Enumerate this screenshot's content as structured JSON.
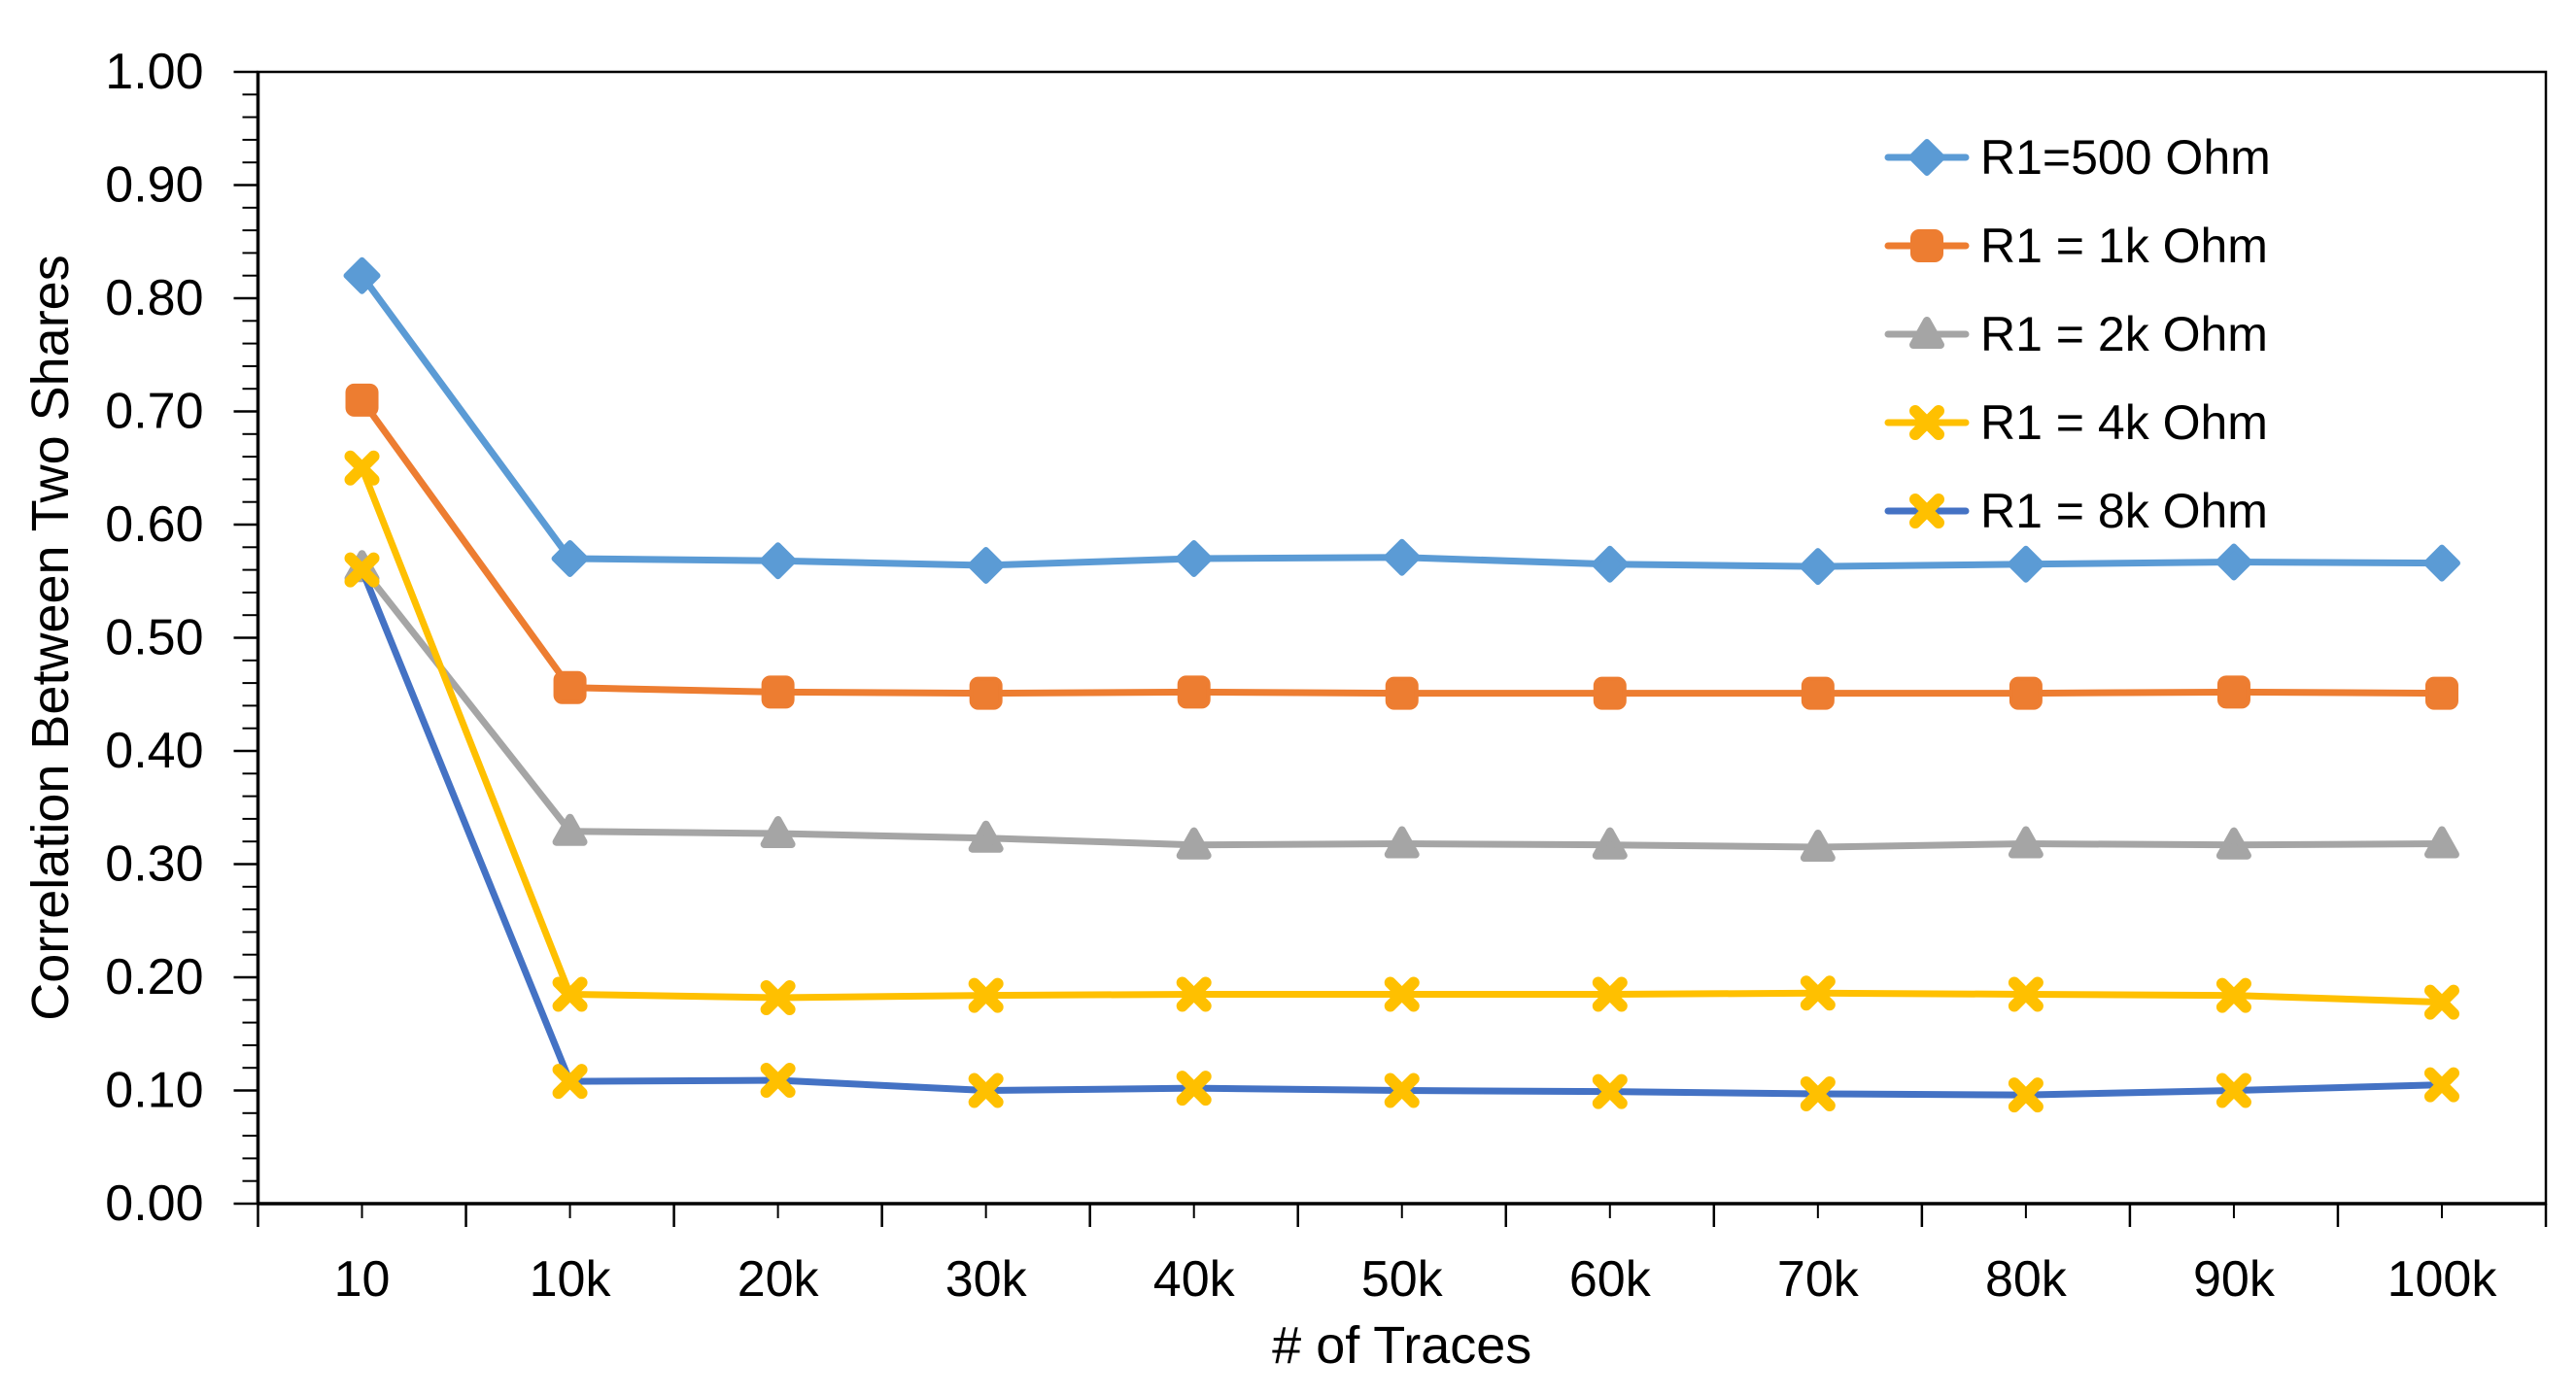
{
  "chart_data": {
    "type": "line",
    "title": "",
    "xlabel": "# of Traces",
    "ylabel": "Correlation Between Two Shares",
    "background": "#FFFFFF",
    "axis_color": "#000000",
    "grid": "none",
    "legend_position": "top-right",
    "categories": [
      "10",
      "10k",
      "20k",
      "30k",
      "40k",
      "50k",
      "60k",
      "70k",
      "80k",
      "90k",
      "100k"
    ],
    "y_axis": {
      "min": 0.0,
      "max": 1.0,
      "major_step": 0.1,
      "minor_step": 0.02,
      "tick_labels": [
        "0.00",
        "0.10",
        "0.20",
        "0.30",
        "0.40",
        "0.50",
        "0.60",
        "0.70",
        "0.80",
        "0.90",
        "1.00"
      ]
    },
    "series": [
      {
        "name": "R1=500 Ohm",
        "line_color": "#5B9BD5",
        "marker": "diamond",
        "marker_color": "#5B9BD5",
        "values": [
          0.82,
          0.57,
          0.568,
          0.564,
          0.57,
          0.571,
          0.565,
          0.563,
          0.565,
          0.567,
          0.566
        ]
      },
      {
        "name": "R1 = 1k Ohm",
        "line_color": "#ED7D31",
        "marker": "square",
        "marker_color": "#ED7D31",
        "values": [
          0.71,
          0.456,
          0.452,
          0.451,
          0.452,
          0.451,
          0.451,
          0.451,
          0.451,
          0.452,
          0.451
        ]
      },
      {
        "name": "R1 = 2k Ohm",
        "line_color": "#A5A5A5",
        "marker": "triangle",
        "marker_color": "#A5A5A5",
        "values": [
          0.562,
          0.329,
          0.327,
          0.323,
          0.317,
          0.318,
          0.317,
          0.315,
          0.318,
          0.317,
          0.318
        ]
      },
      {
        "name": "R1 = 4k Ohm",
        "line_color": "#FFC000",
        "marker": "x",
        "marker_color": "#FFC000",
        "values": [
          0.65,
          0.185,
          0.182,
          0.184,
          0.185,
          0.185,
          0.185,
          0.186,
          0.185,
          0.184,
          0.178
        ]
      },
      {
        "name": "R1 = 8k Ohm",
        "line_color": "#4472C4",
        "marker": "x",
        "marker_color": "#FFC000",
        "values": [
          0.56,
          0.108,
          0.109,
          0.1,
          0.102,
          0.1,
          0.099,
          0.097,
          0.096,
          0.1,
          0.105
        ]
      }
    ]
  }
}
